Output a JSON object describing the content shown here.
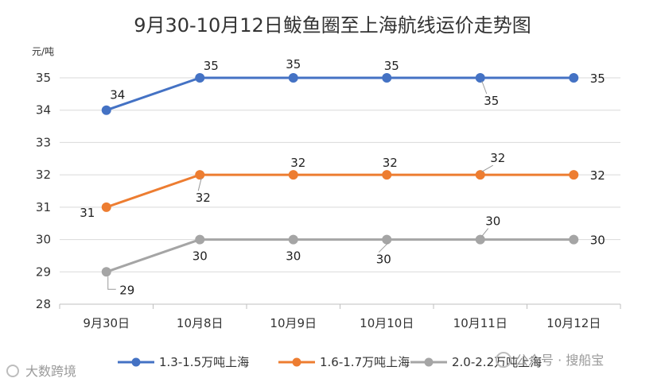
{
  "chart_data": {
    "type": "line",
    "title": "9月30-10月12日鲅鱼圈至上海航线运价走势图",
    "y_unit": "元/吨",
    "ylim": [
      28,
      35
    ],
    "yticks": [
      "35",
      "34",
      "33",
      "32",
      "31",
      "30",
      "29",
      "28"
    ],
    "categories": [
      "9月30日",
      "10月8日",
      "10月9日",
      "10月10日",
      "10月11日",
      "10月12日"
    ],
    "grid": true,
    "legend_position": "bottom",
    "series": [
      {
        "name": "1.3-1.5万吨上海",
        "color": "#4472C4",
        "values": [
          34,
          35,
          35,
          35,
          35,
          35
        ]
      },
      {
        "name": "1.6-1.7万吨上海",
        "color": "#ED7D31",
        "values": [
          31,
          32,
          32,
          32,
          32,
          32
        ]
      },
      {
        "name": "2.0-2.2万吨上海",
        "color": "#A5A5A5",
        "values": [
          29,
          30,
          30,
          30,
          30,
          30
        ]
      }
    ]
  },
  "watermarks": {
    "left": "大数跨境",
    "right": "公众号 · 搜船宝"
  }
}
